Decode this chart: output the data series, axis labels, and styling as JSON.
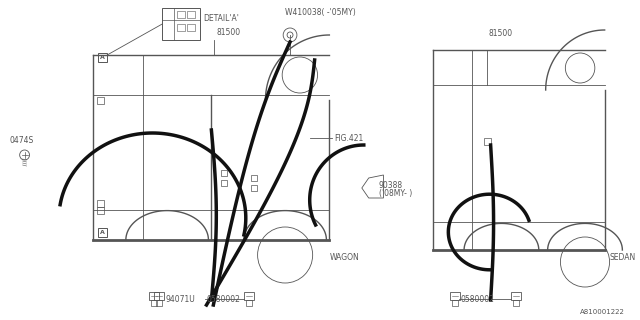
{
  "bg_color": "#ffffff",
  "line_color": "#555555",
  "thick_line_color": "#111111",
  "diagram_id": "A810001222",
  "labels": {
    "part_81500_left": "81500",
    "part_81500_right": "81500",
    "w410038": "W410038( -'05MY)",
    "fig421": "FIG.421",
    "detail_a": "DETAIL'A'",
    "part_0474s": "0474S",
    "part_94071u": "94071U",
    "part_0580002_left": "0580002",
    "part_0580002_right": "0580002",
    "wagon": "WAGON",
    "sedan": "SEDAN",
    "part_90388_line1": "90388",
    "part_90388_line2": "('08MY- )"
  }
}
